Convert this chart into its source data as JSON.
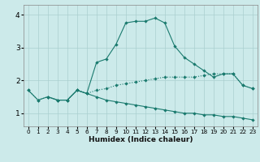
{
  "xlabel": "Humidex (Indice chaleur)",
  "xlim": [
    -0.5,
    23.5
  ],
  "ylim": [
    0.6,
    4.3
  ],
  "xticks": [
    0,
    1,
    2,
    3,
    4,
    5,
    6,
    7,
    8,
    9,
    10,
    11,
    12,
    13,
    14,
    15,
    16,
    17,
    18,
    19,
    20,
    21,
    22,
    23
  ],
  "yticks": [
    1,
    2,
    3,
    4
  ],
  "bg_color": "#cceaea",
  "line_color": "#1a7a6e",
  "grid_color": "#aacfcf",
  "line_flat_x": [
    0,
    1,
    2,
    3,
    4,
    5,
    6,
    7,
    8,
    9,
    10,
    11,
    12,
    13,
    14,
    15,
    16,
    17,
    18,
    19,
    20,
    21,
    22,
    23
  ],
  "line_flat_y": [
    1.7,
    1.4,
    1.5,
    1.4,
    1.4,
    1.7,
    1.6,
    1.5,
    1.4,
    1.35,
    1.3,
    1.25,
    1.2,
    1.15,
    1.1,
    1.05,
    1.0,
    1.0,
    0.95,
    0.95,
    0.9,
    0.9,
    0.85,
    0.8
  ],
  "line_mid_x": [
    0,
    1,
    2,
    3,
    4,
    5,
    6,
    7,
    8,
    9,
    10,
    11,
    12,
    13,
    14,
    15,
    16,
    17,
    18,
    19,
    20,
    21,
    22,
    23
  ],
  "line_mid_y": [
    1.7,
    1.4,
    1.5,
    1.4,
    1.4,
    1.7,
    1.6,
    1.7,
    1.75,
    1.85,
    1.9,
    1.95,
    2.0,
    2.05,
    2.1,
    2.1,
    2.1,
    2.1,
    2.15,
    2.2,
    2.2,
    2.2,
    1.85,
    1.75
  ],
  "line_peak_x": [
    2,
    3,
    4,
    5,
    6,
    7,
    8,
    9,
    10,
    11,
    12,
    13,
    14,
    15,
    16,
    17,
    18,
    19,
    20,
    21,
    22,
    23
  ],
  "line_peak_y": [
    1.5,
    1.4,
    1.4,
    1.7,
    1.6,
    2.55,
    2.65,
    3.1,
    3.75,
    3.8,
    3.8,
    3.9,
    3.75,
    3.05,
    2.7,
    2.5,
    2.3,
    2.1,
    2.2,
    2.2,
    1.85,
    1.75
  ]
}
